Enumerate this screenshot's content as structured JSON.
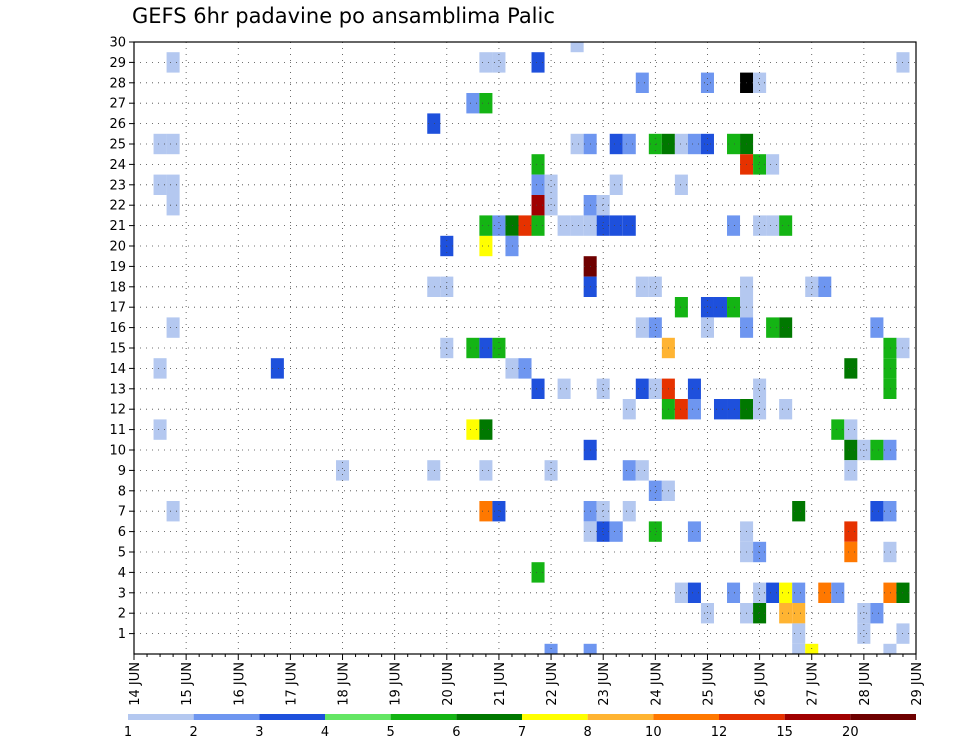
{
  "chart_data": {
    "type": "heatmap",
    "title": "GEFS 6hr padavine po ansamblima Palic",
    "xlabel": "",
    "ylabel": "",
    "x_ticks": [
      "14 JUN",
      "15 JUN",
      "16 JUN",
      "17 JUN",
      "18 JUN",
      "19 JUN",
      "20 JUN",
      "21 JUN",
      "22 JUN",
      "23 JUN",
      "24 JUN",
      "25 JUN",
      "26 JUN",
      "27 JUN",
      "28 JUN",
      "29 JUN"
    ],
    "x_range_days": [
      14,
      29
    ],
    "y_ticks": [
      1,
      2,
      3,
      4,
      5,
      6,
      7,
      8,
      9,
      10,
      11,
      12,
      13,
      14,
      15,
      16,
      17,
      18,
      19,
      20,
      21,
      22,
      23,
      24,
      25,
      26,
      27,
      28,
      29,
      30
    ],
    "y_range": [
      0,
      30
    ],
    "grid": true,
    "legend": {
      "placement": "bottom",
      "labels": [
        "1",
        "2",
        "3",
        "4",
        "5",
        "6",
        "7",
        "8",
        "10",
        "12",
        "15",
        "20"
      ],
      "colors": [
        "#b4c8f0",
        "#6e96f0",
        "#1e50dc",
        "#64e664",
        "#14b414",
        "#007800",
        "#ffff00",
        "#ffb432",
        "#ff7800",
        "#e63200",
        "#a00000",
        "#6e0000"
      ]
    },
    "cells": [
      {
        "t": 14.75,
        "m": 29,
        "c": 1
      },
      {
        "t": 14.5,
        "m": 25,
        "c": 1
      },
      {
        "t": 14.75,
        "m": 25,
        "c": 1
      },
      {
        "t": 14.5,
        "m": 23,
        "c": 1
      },
      {
        "t": 14.75,
        "m": 23,
        "c": 1
      },
      {
        "t": 14.75,
        "m": 22,
        "c": 1
      },
      {
        "t": 14.75,
        "m": 16,
        "c": 1
      },
      {
        "t": 14.5,
        "m": 14,
        "c": 1
      },
      {
        "t": 14.5,
        "m": 11,
        "c": 1
      },
      {
        "t": 14.75,
        "m": 7,
        "c": 1
      },
      {
        "t": 16.75,
        "m": 14,
        "c": 3
      },
      {
        "t": 18.0,
        "m": 9,
        "c": 1
      },
      {
        "t": 19.75,
        "m": 26,
        "c": 3
      },
      {
        "t": 19.75,
        "m": 18,
        "c": 1
      },
      {
        "t": 20.0,
        "m": 18,
        "c": 1
      },
      {
        "t": 19.75,
        "m": 9,
        "c": 1
      },
      {
        "t": 20.0,
        "m": 20,
        "c": 3
      },
      {
        "t": 20.0,
        "m": 15,
        "c": 1
      },
      {
        "t": 20.5,
        "m": 27,
        "c": 2
      },
      {
        "t": 20.75,
        "m": 27,
        "c": 5
      },
      {
        "t": 20.5,
        "m": 15,
        "c": 5
      },
      {
        "t": 20.75,
        "m": 15,
        "c": 3
      },
      {
        "t": 21.0,
        "m": 15,
        "c": 5
      },
      {
        "t": 20.75,
        "m": 20,
        "c": 7
      },
      {
        "t": 20.5,
        "m": 11,
        "c": 7
      },
      {
        "t": 20.75,
        "m": 11,
        "c": 6
      },
      {
        "t": 20.75,
        "m": 7,
        "c": 9
      },
      {
        "t": 21.0,
        "m": 7,
        "c": 3
      },
      {
        "t": 20.75,
        "m": 9,
        "c": 1
      },
      {
        "t": 20.75,
        "m": 29,
        "c": 1
      },
      {
        "t": 21.0,
        "m": 29,
        "c": 1
      },
      {
        "t": 20.75,
        "m": 21,
        "c": 5
      },
      {
        "t": 21.0,
        "m": 21,
        "c": 2
      },
      {
        "t": 21.25,
        "m": 21,
        "c": 6
      },
      {
        "t": 21.5,
        "m": 21,
        "c": 10
      },
      {
        "t": 21.75,
        "m": 21,
        "c": 5
      },
      {
        "t": 21.25,
        "m": 20,
        "c": 2
      },
      {
        "t": 21.25,
        "m": 14,
        "c": 1
      },
      {
        "t": 21.5,
        "m": 14,
        "c": 2
      },
      {
        "t": 21.75,
        "m": 29,
        "c": 3
      },
      {
        "t": 21.75,
        "m": 24,
        "c": 5
      },
      {
        "t": 21.75,
        "m": 23,
        "c": 2
      },
      {
        "t": 22.0,
        "m": 23,
        "c": 1
      },
      {
        "t": 21.75,
        "m": 22,
        "c": 11
      },
      {
        "t": 22.0,
        "m": 22,
        "c": 1
      },
      {
        "t": 21.75,
        "m": 13,
        "c": 3
      },
      {
        "t": 21.75,
        "m": 4,
        "c": 5
      },
      {
        "t": 22.0,
        "m": 9,
        "c": 1
      },
      {
        "t": 22.0,
        "m": 0,
        "c": 2
      },
      {
        "t": 22.25,
        "m": 13,
        "c": 1
      },
      {
        "t": 22.5,
        "m": 30,
        "c": 1
      },
      {
        "t": 22.5,
        "m": 25,
        "c": 1
      },
      {
        "t": 22.75,
        "m": 25,
        "c": 2
      },
      {
        "t": 22.25,
        "m": 21,
        "c": 1
      },
      {
        "t": 22.5,
        "m": 21,
        "c": 1
      },
      {
        "t": 22.75,
        "m": 21,
        "c": 1
      },
      {
        "t": 22.75,
        "m": 22,
        "c": 2
      },
      {
        "t": 23.0,
        "m": 22,
        "c": 1
      },
      {
        "t": 22.75,
        "m": 19,
        "c": 12
      },
      {
        "t": 22.75,
        "m": 18,
        "c": 3
      },
      {
        "t": 22.75,
        "m": 10,
        "c": 3
      },
      {
        "t": 22.75,
        "m": 7,
        "c": 2
      },
      {
        "t": 23.0,
        "m": 7,
        "c": 1
      },
      {
        "t": 22.75,
        "m": 6,
        "c": 1
      },
      {
        "t": 23.0,
        "m": 6,
        "c": 3
      },
      {
        "t": 23.25,
        "m": 6,
        "c": 2
      },
      {
        "t": 22.75,
        "m": 0,
        "c": 2
      },
      {
        "t": 23.0,
        "m": 13,
        "c": 1
      },
      {
        "t": 23.25,
        "m": 25,
        "c": 3
      },
      {
        "t": 23.5,
        "m": 25,
        "c": 2
      },
      {
        "t": 23.0,
        "m": 21,
        "c": 3
      },
      {
        "t": 23.25,
        "m": 21,
        "c": 3
      },
      {
        "t": 23.5,
        "m": 21,
        "c": 3
      },
      {
        "t": 23.25,
        "m": 23,
        "c": 1
      },
      {
        "t": 23.5,
        "m": 12,
        "c": 1
      },
      {
        "t": 23.5,
        "m": 9,
        "c": 2
      },
      {
        "t": 23.75,
        "m": 9,
        "c": 1
      },
      {
        "t": 23.5,
        "m": 7,
        "c": 1
      },
      {
        "t": 23.75,
        "m": 28,
        "c": 2
      },
      {
        "t": 23.75,
        "m": 18,
        "c": 1
      },
      {
        "t": 24.0,
        "m": 18,
        "c": 1
      },
      {
        "t": 23.75,
        "m": 16,
        "c": 1
      },
      {
        "t": 24.0,
        "m": 16,
        "c": 2
      },
      {
        "t": 23.75,
        "m": 13,
        "c": 3
      },
      {
        "t": 24.0,
        "m": 13,
        "c": 1
      },
      {
        "t": 24.25,
        "m": 13,
        "c": 10
      },
      {
        "t": 24.25,
        "m": 15,
        "c": 8
      },
      {
        "t": 24.0,
        "m": 8,
        "c": 2
      },
      {
        "t": 24.25,
        "m": 8,
        "c": 1
      },
      {
        "t": 24.0,
        "m": 6,
        "c": 5
      },
      {
        "t": 24.0,
        "m": 25,
        "c": 5
      },
      {
        "t": 24.25,
        "m": 25,
        "c": 6
      },
      {
        "t": 24.5,
        "m": 25,
        "c": 1
      },
      {
        "t": 24.75,
        "m": 25,
        "c": 2
      },
      {
        "t": 25.0,
        "m": 25,
        "c": 3
      },
      {
        "t": 24.5,
        "m": 23,
        "c": 1
      },
      {
        "t": 24.25,
        "m": 12,
        "c": 5
      },
      {
        "t": 24.5,
        "m": 12,
        "c": 10
      },
      {
        "t": 24.75,
        "m": 12,
        "c": 2
      },
      {
        "t": 24.5,
        "m": 17,
        "c": 5
      },
      {
        "t": 24.75,
        "m": 13,
        "c": 3
      },
      {
        "t": 24.75,
        "m": 6,
        "c": 2
      },
      {
        "t": 24.5,
        "m": 3,
        "c": 1
      },
      {
        "t": 24.75,
        "m": 3,
        "c": 3
      },
      {
        "t": 25.0,
        "m": 28,
        "c": 2
      },
      {
        "t": 25.0,
        "m": 17,
        "c": 3
      },
      {
        "t": 25.25,
        "m": 17,
        "c": 3
      },
      {
        "t": 25.5,
        "m": 17,
        "c": 5
      },
      {
        "t": 25.0,
        "m": 16,
        "c": 1
      },
      {
        "t": 25.25,
        "m": 12,
        "c": 3
      },
      {
        "t": 25.5,
        "m": 12,
        "c": 3
      },
      {
        "t": 25.75,
        "m": 12,
        "c": 6
      },
      {
        "t": 25.0,
        "m": 2,
        "c": 1
      },
      {
        "t": 25.5,
        "m": 3,
        "c": 2
      },
      {
        "t": 25.5,
        "m": 21,
        "c": 2
      },
      {
        "t": 25.5,
        "m": 25,
        "c": 5
      },
      {
        "t": 25.75,
        "m": 25,
        "c": 6
      },
      {
        "t": 25.75,
        "m": 24,
        "c": 10
      },
      {
        "t": 26.0,
        "m": 24,
        "c": 5
      },
      {
        "t": 26.25,
        "m": 24,
        "c": 1
      },
      {
        "t": 25.75,
        "m": 28,
        "c": 13
      },
      {
        "t": 26.0,
        "m": 28,
        "c": 1
      },
      {
        "t": 25.75,
        "m": 18,
        "c": 1
      },
      {
        "t": 25.75,
        "m": 17,
        "c": 1
      },
      {
        "t": 25.75,
        "m": 16,
        "c": 2
      },
      {
        "t": 26.0,
        "m": 13,
        "c": 1
      },
      {
        "t": 26.0,
        "m": 12,
        "c": 1
      },
      {
        "t": 25.75,
        "m": 6,
        "c": 1
      },
      {
        "t": 25.75,
        "m": 5,
        "c": 1
      },
      {
        "t": 26.0,
        "m": 5,
        "c": 2
      },
      {
        "t": 25.75,
        "m": 2,
        "c": 1
      },
      {
        "t": 26.0,
        "m": 2,
        "c": 6
      },
      {
        "t": 26.0,
        "m": 3,
        "c": 1
      },
      {
        "t": 26.0,
        "m": 21,
        "c": 1
      },
      {
        "t": 26.25,
        "m": 21,
        "c": 1
      },
      {
        "t": 26.5,
        "m": 21,
        "c": 5
      },
      {
        "t": 26.25,
        "m": 16,
        "c": 5
      },
      {
        "t": 26.5,
        "m": 16,
        "c": 6
      },
      {
        "t": 26.5,
        "m": 12,
        "c": 1
      },
      {
        "t": 26.25,
        "m": 3,
        "c": 3
      },
      {
        "t": 26.5,
        "m": 3,
        "c": 7
      },
      {
        "t": 26.75,
        "m": 3,
        "c": 2
      },
      {
        "t": 26.5,
        "m": 2,
        "c": 8
      },
      {
        "t": 26.75,
        "m": 2,
        "c": 8
      },
      {
        "t": 26.75,
        "m": 1,
        "c": 1
      },
      {
        "t": 26.75,
        "m": 0,
        "c": 1
      },
      {
        "t": 26.75,
        "m": 7,
        "c": 6
      },
      {
        "t": 27.0,
        "m": 0,
        "c": 7
      },
      {
        "t": 27.0,
        "m": 18,
        "c": 1
      },
      {
        "t": 27.25,
        "m": 18,
        "c": 2
      },
      {
        "t": 27.25,
        "m": 3,
        "c": 9
      },
      {
        "t": 27.5,
        "m": 3,
        "c": 2
      },
      {
        "t": 27.5,
        "m": 11,
        "c": 5
      },
      {
        "t": 27.75,
        "m": 11,
        "c": 1
      },
      {
        "t": 27.75,
        "m": 14,
        "c": 6
      },
      {
        "t": 27.75,
        "m": 10,
        "c": 6
      },
      {
        "t": 28.0,
        "m": 10,
        "c": 1
      },
      {
        "t": 28.25,
        "m": 10,
        "c": 5
      },
      {
        "t": 28.5,
        "m": 10,
        "c": 2
      },
      {
        "t": 27.75,
        "m": 9,
        "c": 1
      },
      {
        "t": 27.75,
        "m": 6,
        "c": 10
      },
      {
        "t": 27.75,
        "m": 5,
        "c": 9
      },
      {
        "t": 28.0,
        "m": 2,
        "c": 1
      },
      {
        "t": 28.25,
        "m": 2,
        "c": 2
      },
      {
        "t": 28.0,
        "m": 1,
        "c": 1
      },
      {
        "t": 28.25,
        "m": 16,
        "c": 2
      },
      {
        "t": 28.25,
        "m": 7,
        "c": 3
      },
      {
        "t": 28.5,
        "m": 7,
        "c": 2
      },
      {
        "t": 28.5,
        "m": 5,
        "c": 1
      },
      {
        "t": 28.5,
        "m": 3,
        "c": 9
      },
      {
        "t": 28.75,
        "m": 3,
        "c": 6
      },
      {
        "t": 28.5,
        "m": 15,
        "c": 5
      },
      {
        "t": 28.5,
        "m": 14,
        "c": 5
      },
      {
        "t": 28.5,
        "m": 13,
        "c": 5
      },
      {
        "t": 28.75,
        "m": 29,
        "c": 1
      },
      {
        "t": 28.75,
        "m": 15,
        "c": 1
      },
      {
        "t": 28.75,
        "m": 1,
        "c": 1
      },
      {
        "t": 28.5,
        "m": 0,
        "c": 1
      }
    ]
  }
}
